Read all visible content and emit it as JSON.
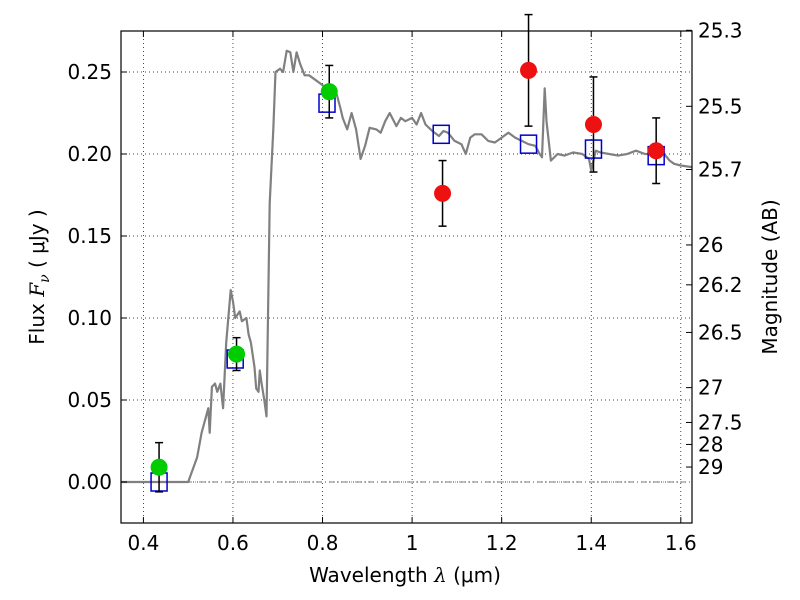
{
  "chart_data": {
    "type": "scatter",
    "xlabel": {
      "prefix": "Wavelength",
      "symbol": "λ",
      "unit": "(μm)"
    },
    "ylabel": {
      "prefix": "Flux",
      "symbol": "F",
      "subscript": "ν",
      "unit": "( μJy )"
    },
    "y2label": "Magnitude (AB)",
    "xlim": [
      0.35,
      1.625
    ],
    "ylim": [
      -0.025,
      0.275
    ],
    "grid": true,
    "x_ticks": [
      {
        "value": 0.4,
        "label": "0.4"
      },
      {
        "value": 0.6,
        "label": "0.6"
      },
      {
        "value": 0.8,
        "label": "0.8"
      },
      {
        "value": 1.0,
        "label": "1"
      },
      {
        "value": 1.2,
        "label": "1.2"
      },
      {
        "value": 1.4,
        "label": "1.4"
      },
      {
        "value": 1.6,
        "label": "1.6"
      }
    ],
    "y_ticks": [
      {
        "value": 0.0,
        "label": "0.00"
      },
      {
        "value": 0.05,
        "label": "0.05"
      },
      {
        "value": 0.1,
        "label": "0.10"
      },
      {
        "value": 0.15,
        "label": "0.15"
      },
      {
        "value": 0.2,
        "label": "0.20"
      },
      {
        "value": 0.25,
        "label": "0.25"
      }
    ],
    "y2_ticks": [
      {
        "value": 25.3,
        "label": "25.3"
      },
      {
        "value": 25.5,
        "label": "25.5"
      },
      {
        "value": 25.7,
        "label": "25.7"
      },
      {
        "value": 26,
        "label": "26"
      },
      {
        "value": 26.2,
        "label": "26.2"
      },
      {
        "value": 26.5,
        "label": "26.5"
      },
      {
        "value": 27,
        "label": "27"
      },
      {
        "value": 27.5,
        "label": "27.5"
      },
      {
        "value": 28,
        "label": "28"
      },
      {
        "value": 29,
        "label": "29"
      }
    ],
    "series": [
      {
        "kind": "line",
        "color": "#808080",
        "points": [
          [
            0.35,
            0.0
          ],
          [
            0.5,
            0.0
          ],
          [
            0.52,
            0.015
          ],
          [
            0.53,
            0.03
          ],
          [
            0.545,
            0.045
          ],
          [
            0.548,
            0.03
          ],
          [
            0.553,
            0.058
          ],
          [
            0.56,
            0.06
          ],
          [
            0.565,
            0.055
          ],
          [
            0.572,
            0.06
          ],
          [
            0.578,
            0.045
          ],
          [
            0.585,
            0.085
          ],
          [
            0.595,
            0.117
          ],
          [
            0.6,
            0.11
          ],
          [
            0.605,
            0.1
          ],
          [
            0.615,
            0.104
          ],
          [
            0.62,
            0.098
          ],
          [
            0.63,
            0.1
          ],
          [
            0.635,
            0.09
          ],
          [
            0.64,
            0.085
          ],
          [
            0.648,
            0.07
          ],
          [
            0.652,
            0.057
          ],
          [
            0.657,
            0.055
          ],
          [
            0.66,
            0.068
          ],
          [
            0.664,
            0.06
          ],
          [
            0.67,
            0.05
          ],
          [
            0.675,
            0.04
          ],
          [
            0.682,
            0.17
          ],
          [
            0.69,
            0.215
          ],
          [
            0.695,
            0.25
          ],
          [
            0.705,
            0.252
          ],
          [
            0.712,
            0.25
          ],
          [
            0.72,
            0.263
          ],
          [
            0.728,
            0.262
          ],
          [
            0.735,
            0.25
          ],
          [
            0.742,
            0.262
          ],
          [
            0.75,
            0.255
          ],
          [
            0.76,
            0.248
          ],
          [
            0.77,
            0.248
          ],
          [
            0.785,
            0.245
          ],
          [
            0.8,
            0.242
          ],
          [
            0.81,
            0.239
          ],
          [
            0.83,
            0.238
          ],
          [
            0.84,
            0.228
          ],
          [
            0.845,
            0.222
          ],
          [
            0.855,
            0.215
          ],
          [
            0.865,
            0.225
          ],
          [
            0.875,
            0.215
          ],
          [
            0.885,
            0.197
          ],
          [
            0.895,
            0.205
          ],
          [
            0.905,
            0.216
          ],
          [
            0.92,
            0.215
          ],
          [
            0.93,
            0.213
          ],
          [
            0.94,
            0.22
          ],
          [
            0.95,
            0.225
          ],
          [
            0.965,
            0.217
          ],
          [
            0.975,
            0.222
          ],
          [
            0.985,
            0.22
          ],
          [
            1.0,
            0.222
          ],
          [
            1.01,
            0.218
          ],
          [
            1.02,
            0.225
          ],
          [
            1.03,
            0.218
          ],
          [
            1.045,
            0.214
          ],
          [
            1.06,
            0.211
          ],
          [
            1.07,
            0.214
          ],
          [
            1.08,
            0.213
          ],
          [
            1.095,
            0.208
          ],
          [
            1.11,
            0.206
          ],
          [
            1.12,
            0.2
          ],
          [
            1.13,
            0.21
          ],
          [
            1.14,
            0.212
          ],
          [
            1.155,
            0.212
          ],
          [
            1.17,
            0.208
          ],
          [
            1.185,
            0.207
          ],
          [
            1.2,
            0.21
          ],
          [
            1.215,
            0.213
          ],
          [
            1.23,
            0.21
          ],
          [
            1.245,
            0.208
          ],
          [
            1.26,
            0.206
          ],
          [
            1.275,
            0.205
          ],
          [
            1.285,
            0.2
          ],
          [
            1.29,
            0.198
          ],
          [
            1.296,
            0.24
          ],
          [
            1.3,
            0.22
          ],
          [
            1.31,
            0.196
          ],
          [
            1.325,
            0.2
          ],
          [
            1.34,
            0.199
          ],
          [
            1.36,
            0.201
          ],
          [
            1.38,
            0.2
          ],
          [
            1.395,
            0.197
          ],
          [
            1.4,
            0.19
          ],
          [
            1.41,
            0.202
          ],
          [
            1.42,
            0.201
          ],
          [
            1.44,
            0.2
          ],
          [
            1.46,
            0.199
          ],
          [
            1.48,
            0.2
          ],
          [
            1.5,
            0.202
          ],
          [
            1.52,
            0.2
          ],
          [
            1.54,
            0.2
          ],
          [
            1.56,
            0.201
          ],
          [
            1.575,
            0.196
          ],
          [
            1.585,
            0.194
          ],
          [
            1.6,
            0.193
          ],
          [
            1.625,
            0.192
          ]
        ]
      },
      {
        "kind": "squares",
        "color": "#0000cc",
        "points": [
          [
            0.435,
            0.0
          ],
          [
            0.605,
            0.075
          ],
          [
            0.81,
            0.231
          ],
          [
            1.065,
            0.212
          ],
          [
            1.26,
            0.206
          ],
          [
            1.405,
            0.203
          ],
          [
            1.545,
            0.199
          ]
        ]
      },
      {
        "kind": "errorbar_points",
        "color": "#00cc00",
        "points": [
          {
            "x": 0.435,
            "y": 0.009,
            "err": 0.015
          },
          {
            "x": 0.608,
            "y": 0.078,
            "err": 0.01
          },
          {
            "x": 0.815,
            "y": 0.238,
            "err": 0.016
          }
        ]
      },
      {
        "kind": "errorbar_points",
        "color": "#ee1111",
        "points": [
          {
            "x": 1.068,
            "y": 0.176,
            "err": 0.02
          },
          {
            "x": 1.26,
            "y": 0.251,
            "err": 0.034
          },
          {
            "x": 1.405,
            "y": 0.218,
            "err": 0.029
          },
          {
            "x": 1.545,
            "y": 0.202,
            "err": 0.02
          }
        ]
      }
    ]
  }
}
